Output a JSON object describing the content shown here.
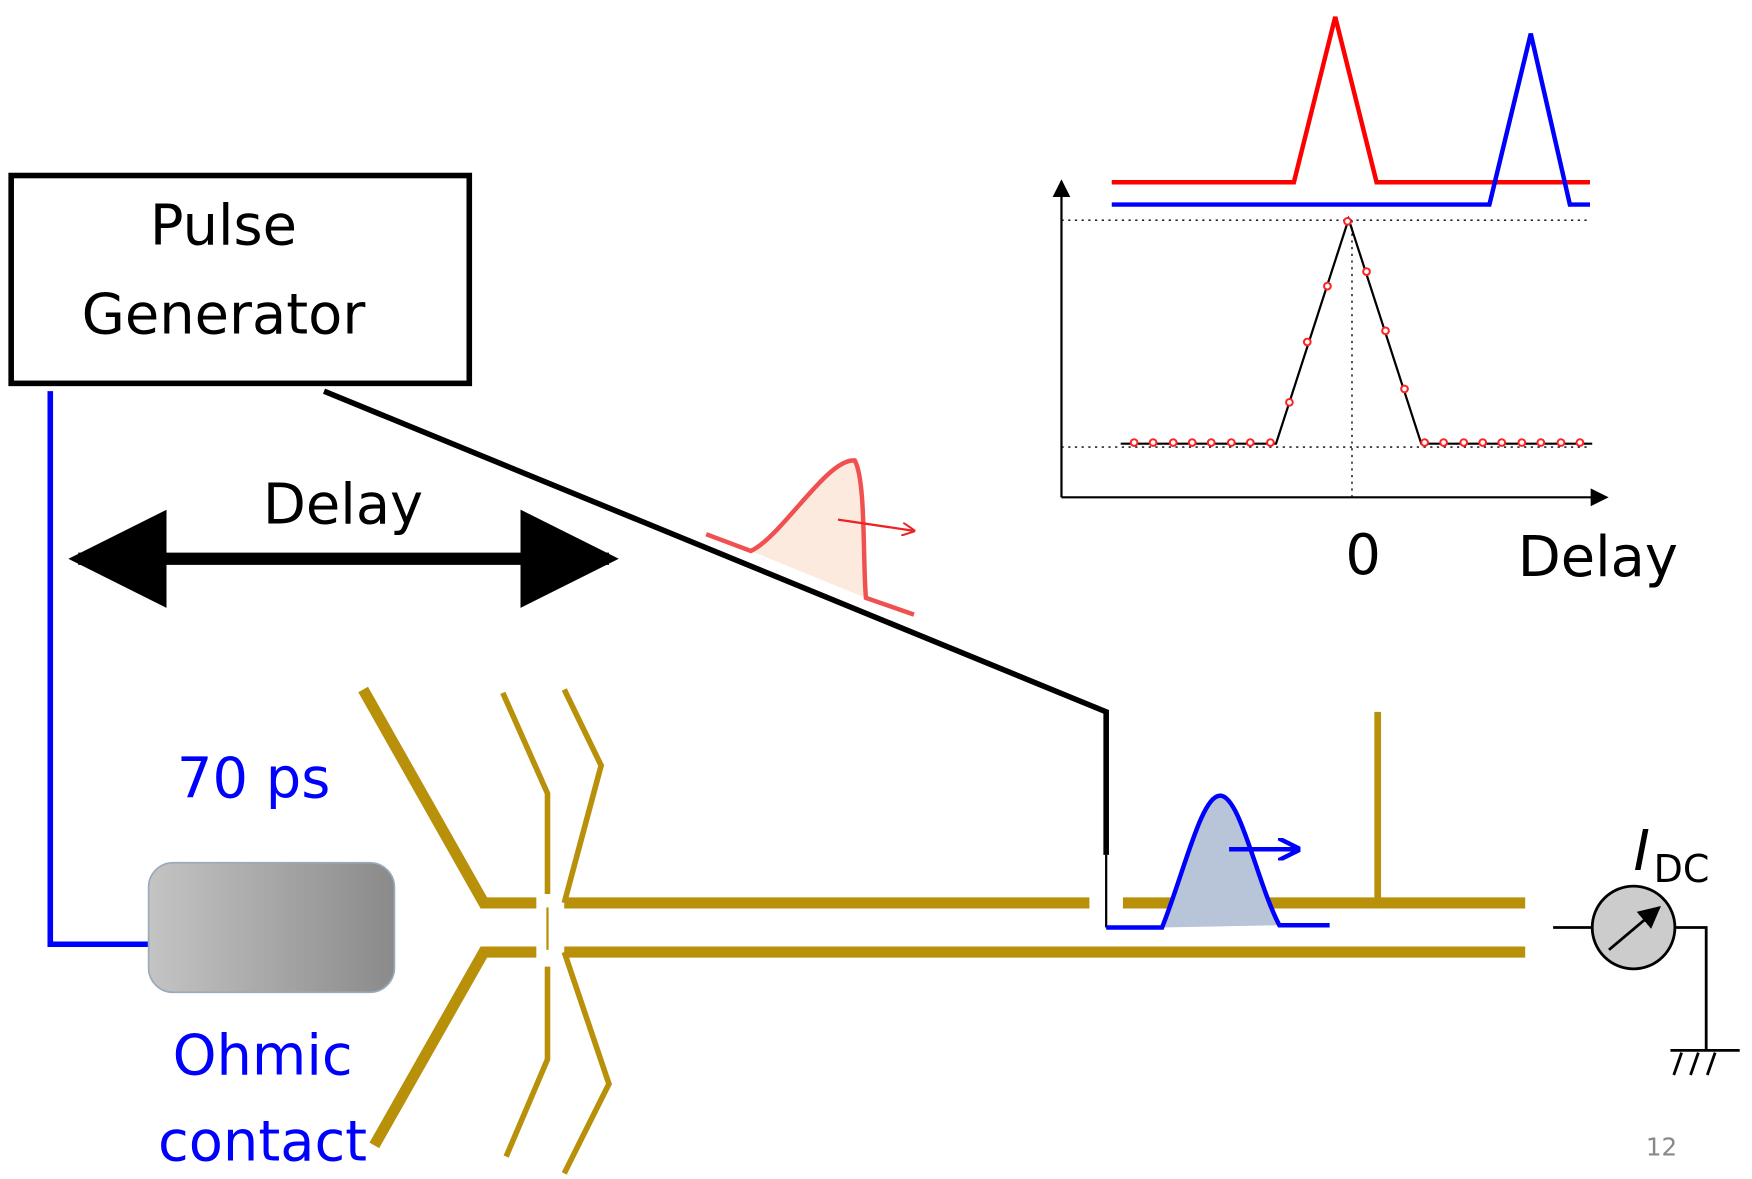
{
  "pulse_generator": {
    "label_lines": [
      "Pulse",
      "Generator"
    ]
  },
  "delay_label": "Delay",
  "pulse_width": "70 ps",
  "ohmic_contact": {
    "label_lines": [
      "Ohmic",
      "contact"
    ]
  },
  "inset": {
    "x_zero": "0",
    "x_label": "Delay"
  },
  "current_meter": {
    "symbol": "I",
    "subscript": "DC"
  },
  "page_number": "12"
}
